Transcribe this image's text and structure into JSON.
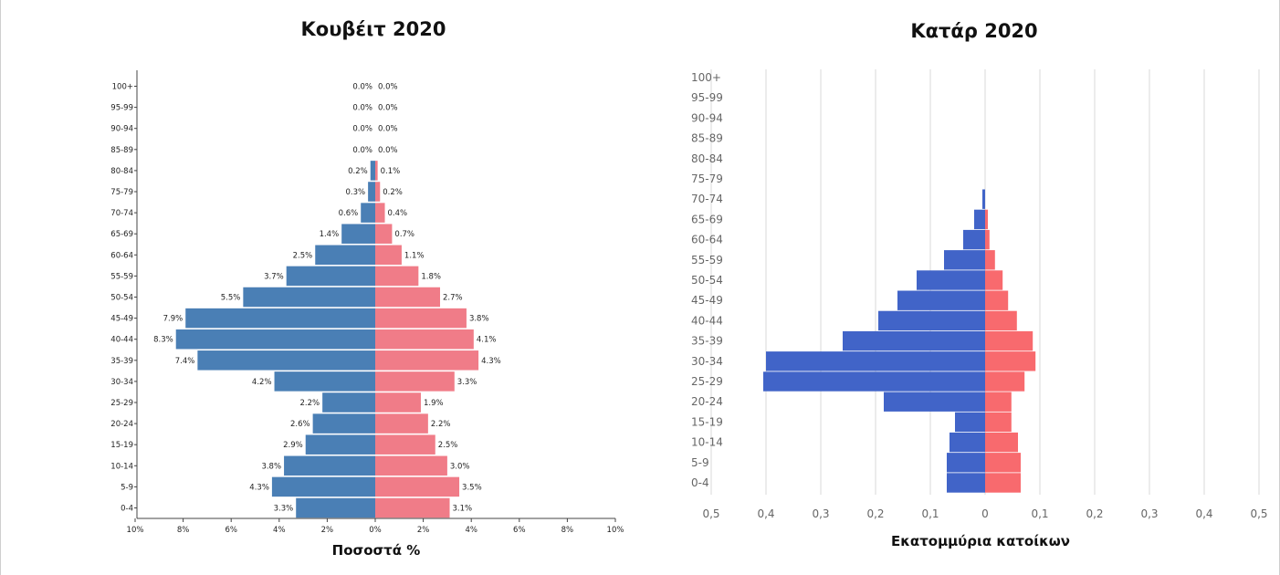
{
  "chart_data": [
    {
      "type": "bar",
      "orientation": "horizontal",
      "title": "Κουβέιτ 2020",
      "xlabel": "Ποσοστά  %",
      "categories": [
        "0-4",
        "5-9",
        "10-14",
        "15-19",
        "20-24",
        "25-29",
        "30-34",
        "35-39",
        "40-44",
        "45-49",
        "50-54",
        "55-59",
        "60-64",
        "65-69",
        "70-74",
        "75-79",
        "80-84",
        "85-89",
        "90-94",
        "95-99",
        "100+"
      ],
      "series": [
        {
          "values": [
            3.3,
            4.3,
            3.8,
            2.9,
            2.6,
            2.2,
            4.2,
            7.4,
            8.3,
            7.9,
            5.5,
            3.7,
            2.5,
            1.4,
            0.6,
            0.3,
            0.2,
            0.0,
            0.0,
            0.0,
            0.0
          ],
          "labels": [
            "3.3%",
            "4.3%",
            "3.8%",
            "2.9%",
            "2.6%",
            "2.2%",
            "4.2%",
            "7.4%",
            "8.3%",
            "7.9%",
            "5.5%",
            "3.7%",
            "2.5%",
            "1.4%",
            "0.6%",
            "0.3%",
            "0.2%",
            "0.0%",
            "0.0%",
            "0.0%",
            "0.0%"
          ]
        },
        {
          "values": [
            3.1,
            3.5,
            3.0,
            2.5,
            2.2,
            1.9,
            3.3,
            4.3,
            4.1,
            3.8,
            2.7,
            1.8,
            1.1,
            0.7,
            0.4,
            0.2,
            0.1,
            0.0,
            0.0,
            0.0,
            0.0
          ],
          "labels": [
            "3.1%",
            "3.5%",
            "3.0%",
            "2.5%",
            "2.2%",
            "1.9%",
            "3.3%",
            "4.3%",
            "4.1%",
            "3.8%",
            "2.7%",
            "1.8%",
            "1.1%",
            "0.7%",
            "0.4%",
            "0.2%",
            "0.1%",
            "0.0%",
            "0.0%",
            "0.0%",
            "0.0%"
          ]
        }
      ],
      "xlim": [
        -10,
        10
      ],
      "xticks": [
        "10%",
        "8%",
        "6%",
        "4%",
        "2%",
        "0%",
        "2%",
        "4%",
        "6%",
        "8%",
        "10%"
      ],
      "grid": false,
      "colors": [
        "#4a7fb5",
        "#f07c88"
      ]
    },
    {
      "type": "bar",
      "orientation": "horizontal",
      "title": "Κατάρ 2020",
      "xlabel": "Εκατομμύρια κατοίκων",
      "categories": [
        "0-4",
        "5-9",
        "10-14",
        "15-19",
        "20-24",
        "25-29",
        "30-34",
        "35-39",
        "40-44",
        "45-49",
        "50-54",
        "55-59",
        "60-64",
        "65-69",
        "70-74",
        "75-79",
        "80-84",
        "85-89",
        "90-94",
        "95-99",
        "100+"
      ],
      "series": [
        {
          "values": [
            0.07,
            0.07,
            0.065,
            0.055,
            0.185,
            0.405,
            0.4,
            0.26,
            0.195,
            0.16,
            0.125,
            0.075,
            0.04,
            0.02,
            0.005,
            0,
            0,
            0,
            0,
            0,
            0
          ]
        },
        {
          "values": [
            0.065,
            0.065,
            0.06,
            0.048,
            0.048,
            0.072,
            0.092,
            0.087,
            0.058,
            0.042,
            0.032,
            0.018,
            0.008,
            0.005,
            0,
            0,
            0,
            0,
            0,
            0,
            0
          ]
        }
      ],
      "xlim": [
        -0.5,
        0.5
      ],
      "xticks": [
        "0,5",
        "0,4",
        "0,3",
        "0,2",
        "0,1",
        "0",
        "0,1",
        "0,2",
        "0,3",
        "0,4",
        "0,5"
      ],
      "grid": true,
      "colors": [
        "#4164c8",
        "#f86a6e"
      ]
    }
  ]
}
